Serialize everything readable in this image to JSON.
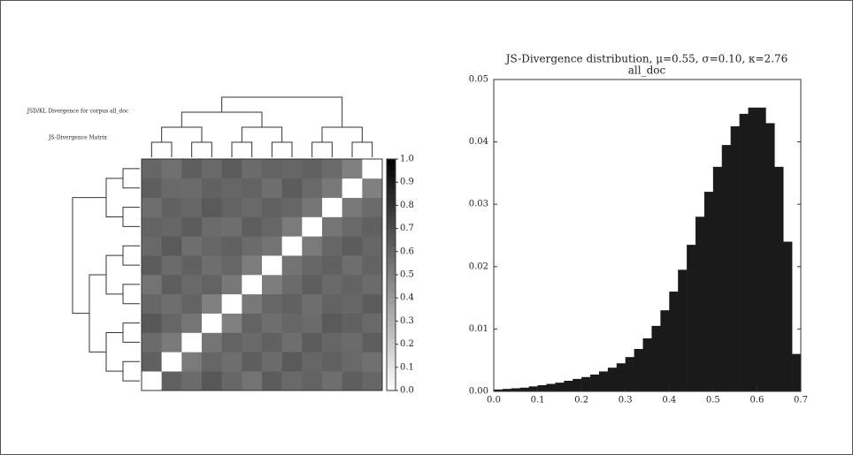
{
  "chart_data": [
    {
      "type": "heatmap",
      "annotations": [
        "JSD/KL Divergence for corpus all_doc",
        "JS-Divergence Matrix"
      ],
      "colormap": [
        "#ffffff",
        "#000000"
      ],
      "clim": [
        0,
        1
      ],
      "colorbar_ticks": [
        {
          "value": 0,
          "label": "0.0"
        },
        0.1,
        0.2,
        0.3,
        0.4,
        0.5,
        0.6,
        0.7,
        0.8,
        0.9,
        {
          "value": 1,
          "label": "1.0"
        }
      ],
      "matrix": [
        [
          0,
          0.62,
          0.58,
          0.66,
          0.6,
          0.55,
          0.64,
          0.59,
          0.61,
          0.57,
          0.63,
          0.6
        ],
        [
          0.62,
          0,
          0.52,
          0.6,
          0.57,
          0.63,
          0.58,
          0.65,
          0.6,
          0.62,
          0.59,
          0.56
        ],
        [
          0.58,
          0.52,
          0,
          0.54,
          0.61,
          0.59,
          0.62,
          0.57,
          0.64,
          0.6,
          0.58,
          0.63
        ],
        [
          0.66,
          0.6,
          0.54,
          0,
          0.5,
          0.61,
          0.57,
          0.6,
          0.58,
          0.65,
          0.62,
          0.59
        ],
        [
          0.6,
          0.57,
          0.61,
          0.5,
          0,
          0.53,
          0.6,
          0.62,
          0.57,
          0.61,
          0.6,
          0.64
        ],
        [
          0.55,
          0.63,
          0.59,
          0.61,
          0.53,
          0,
          0.51,
          0.58,
          0.63,
          0.59,
          0.61,
          0.58
        ],
        [
          0.64,
          0.58,
          0.62,
          0.57,
          0.6,
          0.51,
          0,
          0.55,
          0.6,
          0.62,
          0.57,
          0.61
        ],
        [
          0.59,
          0.65,
          0.57,
          0.6,
          0.62,
          0.58,
          0.55,
          0,
          0.52,
          0.6,
          0.64,
          0.6
        ],
        [
          0.61,
          0.6,
          0.64,
          0.58,
          0.57,
          0.63,
          0.6,
          0.52,
          0,
          0.54,
          0.59,
          0.62
        ],
        [
          0.57,
          0.62,
          0.6,
          0.65,
          0.61,
          0.59,
          0.62,
          0.6,
          0.54,
          0,
          0.53,
          0.58
        ],
        [
          0.63,
          0.59,
          0.58,
          0.62,
          0.6,
          0.61,
          0.57,
          0.64,
          0.59,
          0.53,
          0,
          0.5
        ],
        [
          0.6,
          0.56,
          0.63,
          0.59,
          0.64,
          0.58,
          0.61,
          0.6,
          0.62,
          0.58,
          0.5,
          0
        ]
      ]
    },
    {
      "type": "histogram",
      "title": "JS-Divergence distribution, μ=0.55, σ=0.10, κ=2.76",
      "subtitle": "all_doc",
      "color": "#1a1a1a",
      "xlim": [
        0,
        0.7
      ],
      "xticks": [
        {
          "value": 0,
          "label": "0.0"
        },
        0.1,
        0.2,
        0.3,
        0.4,
        0.5,
        0.6,
        0.7
      ],
      "ylim": [
        0,
        0.05
      ],
      "yticks": [
        {
          "value": 0,
          "label": "0.00"
        },
        0.01,
        0.02,
        0.03,
        0.04,
        0.05
      ],
      "bins": [
        0,
        0.02,
        0.04,
        0.06,
        0.08,
        0.1,
        0.12,
        0.14,
        0.16,
        0.18,
        0.2,
        0.22,
        0.24,
        0.26,
        0.28,
        0.3,
        0.32,
        0.34,
        0.36,
        0.38,
        0.4,
        0.42,
        0.44,
        0.46,
        0.48,
        0.5,
        0.52,
        0.54,
        0.56,
        0.58,
        0.6,
        0.62,
        0.64,
        0.66,
        0.68,
        0.7
      ],
      "values": [
        0.0003,
        0.0004,
        0.0005,
        0.0006,
        0.0008,
        0.001,
        0.0012,
        0.0014,
        0.0017,
        0.002,
        0.0023,
        0.0027,
        0.0032,
        0.0038,
        0.0045,
        0.0055,
        0.0068,
        0.0085,
        0.0105,
        0.013,
        0.016,
        0.0195,
        0.0235,
        0.028,
        0.032,
        0.036,
        0.0395,
        0.0425,
        0.0445,
        0.0455,
        0.0455,
        0.043,
        0.036,
        0.024,
        0.006
      ]
    }
  ]
}
